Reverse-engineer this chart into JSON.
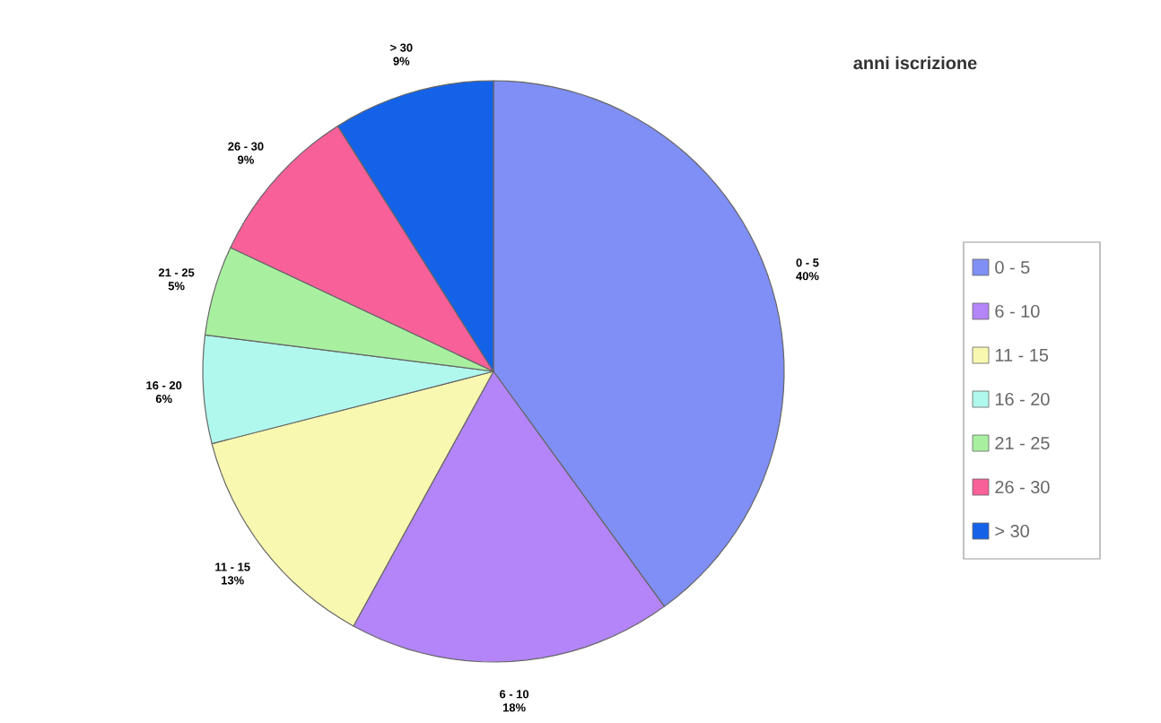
{
  "chart_data": {
    "type": "pie",
    "title": "anni iscrizione",
    "categories": [
      "0 - 5",
      "6 - 10",
      "11 - 15",
      "16 - 20",
      "21 - 25",
      "26 - 30",
      "> 30"
    ],
    "values": [
      40,
      18,
      13,
      6,
      5,
      9,
      9
    ],
    "value_labels": [
      "40%",
      "18%",
      "13%",
      "6%",
      "5%",
      "9%",
      "9%"
    ],
    "colors": [
      "#7f8ff5",
      "#b385f8",
      "#f8f8b0",
      "#b0f8ee",
      "#a8f0a0",
      "#f8609a",
      "#1462e8"
    ],
    "legend": "right"
  }
}
